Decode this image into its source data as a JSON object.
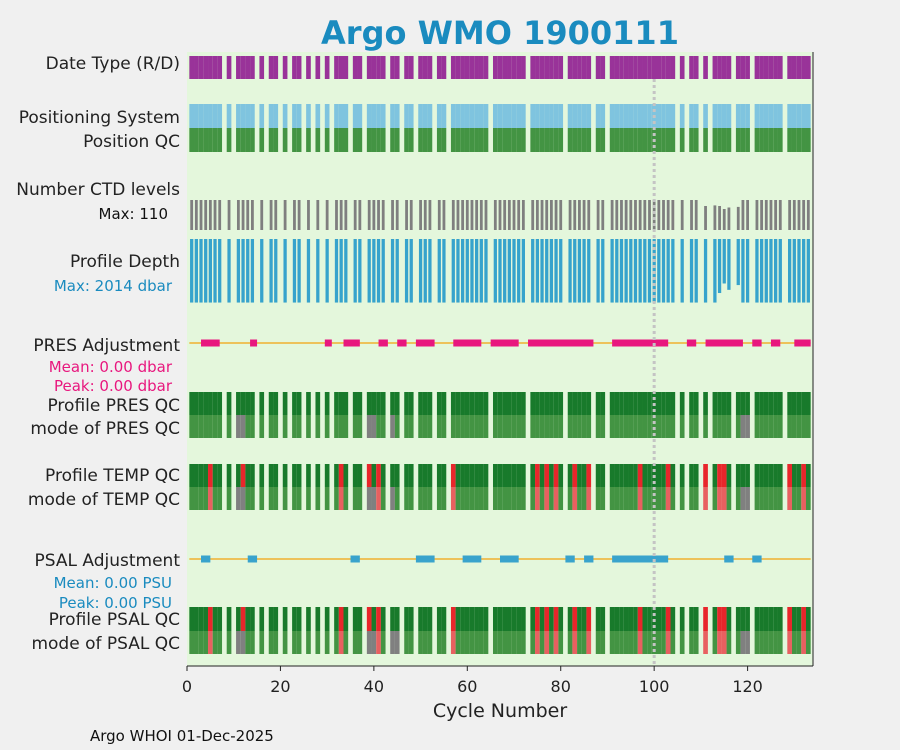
{
  "page": {
    "footer": "Argo WHOI 01-Dec-2025"
  },
  "colors": {
    "background": "#f0f0f0",
    "panel": "#e4f7dc",
    "date_type": "#993399",
    "positioning": "#7fc4df",
    "position_qc": "#439443",
    "ctd_levels": "#7f7f7f",
    "depth": "#36a3cc",
    "pres_adj": "#e8177e",
    "adj_line": "#f0b030",
    "psal_adj": "#39a3cc",
    "qc_dark": "#187a2b",
    "qc_light": "#439443",
    "qc_gray": "#808080",
    "qc_red": "#e8262b",
    "qc_red_light": "#e86060",
    "title": "#1a8bbf",
    "pres_stats": "#e8177e",
    "psal_stats": "#1a8bbf"
  },
  "chart_data": {
    "type": "timeline",
    "title": "Argo WMO 1900111",
    "xlabel": "Cycle Number",
    "xlim": [
      0,
      134
    ],
    "xticks": [
      0,
      20,
      40,
      60,
      80,
      100,
      120
    ],
    "reference_cycle": 100,
    "gaps": [
      8,
      10,
      15,
      17,
      20,
      22,
      25,
      27,
      29,
      31,
      35,
      38,
      43,
      46,
      49,
      53,
      56,
      65,
      73,
      81,
      87,
      90,
      105,
      107,
      110,
      112,
      117,
      121,
      128
    ],
    "rows": {
      "date_type": {
        "label": "Date Type (R/D)"
      },
      "positioning": {
        "label": "Positioning System"
      },
      "position_qc": {
        "label": "Position QC"
      },
      "ctd_levels": {
        "label": "Number CTD levels",
        "max_label": "Max: 110",
        "max": 110,
        "typical": 100,
        "low_cycles": [
          [
            111,
            80
          ],
          [
            113,
            82
          ],
          [
            114,
            80
          ],
          [
            115,
            70
          ],
          [
            116,
            75
          ],
          [
            117,
            70
          ],
          [
            118,
            77
          ]
        ]
      },
      "profile_depth": {
        "label": "Profile Depth",
        "max_label": "Max: 2014 dbar",
        "max": 2014,
        "typical": 2000,
        "low_cycles": [
          [
            114,
            1700
          ],
          [
            115,
            1400
          ],
          [
            116,
            1600
          ],
          [
            117,
            1300
          ],
          [
            118,
            1450
          ]
        ]
      },
      "pres_adjustment": {
        "label": "PRES Adjustment",
        "mean_label": "Mean: 0.00 dbar",
        "peak_label": "Peak: 0.00 dbar",
        "mean": 0.0,
        "peak": 0.0,
        "segments": [
          [
            3,
            7
          ],
          [
            13.5,
            15
          ],
          [
            29.5,
            31
          ],
          [
            33.5,
            37
          ],
          [
            41,
            43
          ],
          [
            45,
            47
          ],
          [
            49,
            53
          ],
          [
            57,
            63
          ],
          [
            65,
            71
          ],
          [
            73,
            87
          ],
          [
            91,
            103
          ],
          [
            107,
            109
          ],
          [
            111,
            119
          ],
          [
            121,
            123
          ],
          [
            125,
            127
          ],
          [
            130,
            133.5
          ]
        ]
      },
      "profile_pres_qc": {
        "label": "Profile PRES QC"
      },
      "mode_pres_qc": {
        "label": "mode of PRES QC",
        "gray_cycles": [
          11,
          12,
          39,
          40,
          43,
          44,
          119,
          120
        ]
      },
      "profile_temp_qc": {
        "label": "Profile TEMP QC",
        "red_cycles": [
          5,
          12,
          33,
          39,
          41,
          57,
          73,
          75,
          77,
          79,
          81,
          83,
          86,
          97,
          103,
          111,
          114,
          115,
          117,
          121,
          129,
          132
        ]
      },
      "mode_temp_qc": {
        "label": "mode of TEMP QC",
        "gray_cycles": [
          11,
          12,
          39,
          40,
          43,
          44,
          119,
          120
        ]
      },
      "psal_adjustment": {
        "label": "PSAL Adjustment",
        "mean_label": "Mean: 0.00 PSU",
        "peak_label": "Peak: 0.00 PSU",
        "mean": 0.0,
        "peak": 0.0,
        "segments": [
          [
            3,
            5
          ],
          [
            13,
            15
          ],
          [
            35,
            37
          ],
          [
            49,
            53
          ],
          [
            59,
            63
          ],
          [
            67,
            71
          ],
          [
            81,
            83
          ],
          [
            85,
            87
          ],
          [
            91,
            103
          ],
          [
            115,
            117
          ],
          [
            121,
            123
          ]
        ]
      },
      "profile_psal_qc": {
        "label": "Profile PSAL QC"
      },
      "mode_psal_qc": {
        "label": "mode of PSAL QC",
        "gray_cycles": [
          11,
          12,
          39,
          40,
          43,
          44,
          45,
          119,
          120
        ]
      }
    }
  }
}
